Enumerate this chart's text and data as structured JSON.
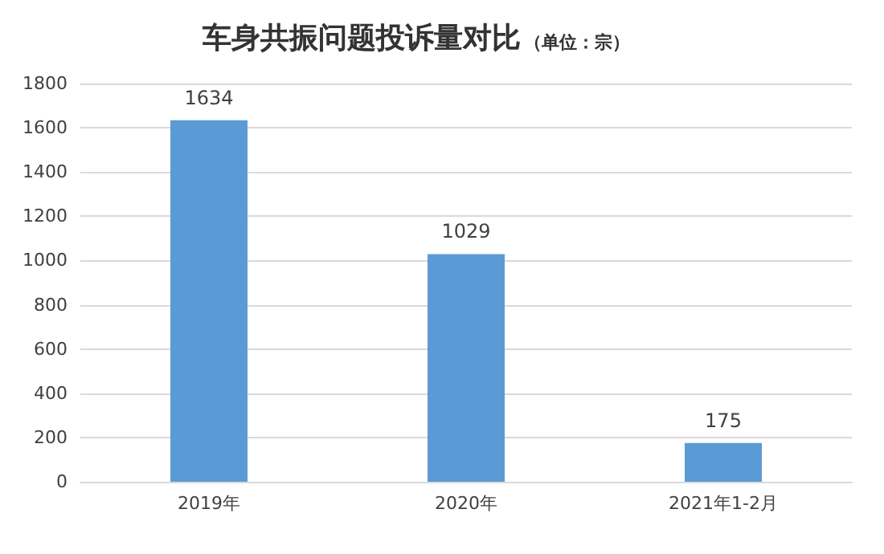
{
  "chart_data": {
    "type": "bar",
    "title": "车身共振问题投诉量对比",
    "subtitle": "（单位：宗）",
    "categories": [
      "2019年",
      "2020年",
      "2021年1-2月"
    ],
    "values": [
      1634,
      1029,
      175
    ],
    "color": "#5b9bd5",
    "ylim": [
      0,
      1800
    ],
    "yticks": [
      0,
      200,
      400,
      600,
      800,
      1000,
      1200,
      1400,
      1600,
      1800
    ],
    "grid": "y",
    "data_labels": true
  }
}
